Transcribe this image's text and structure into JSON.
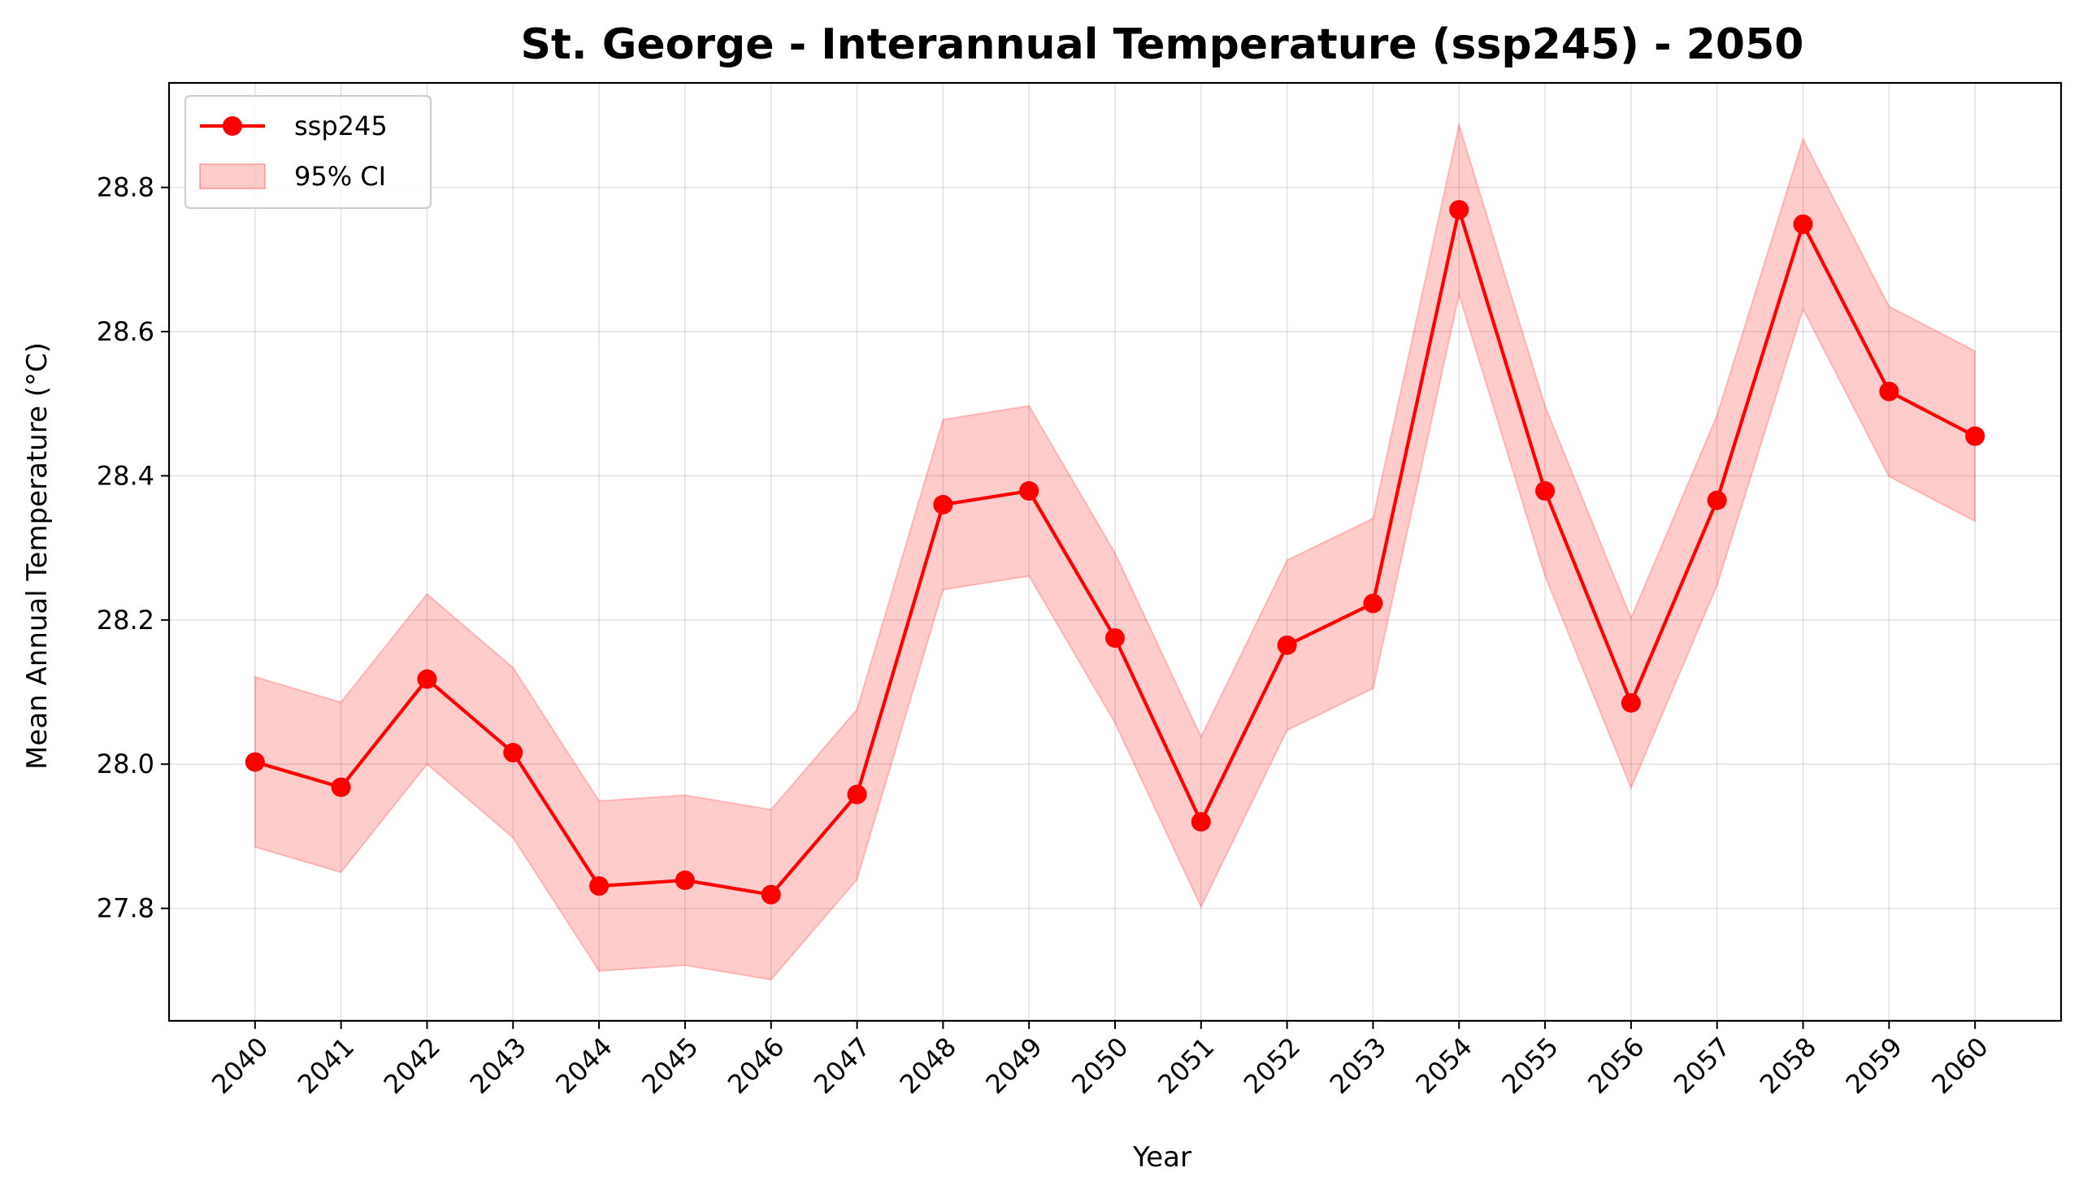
{
  "chart_data": {
    "type": "line",
    "title": "St. George - Interannual Temperature (ssp245) - 2050",
    "xlabel": "Year",
    "ylabel": "Mean Annual Temperature (°C)",
    "x": [
      2040,
      2041,
      2042,
      2043,
      2044,
      2045,
      2046,
      2047,
      2048,
      2049,
      2050,
      2051,
      2052,
      2053,
      2054,
      2055,
      2056,
      2057,
      2058,
      2059,
      2060
    ],
    "x_tick_labels": [
      "2040",
      "2041",
      "2042",
      "2043",
      "2044",
      "2045",
      "2046",
      "2047",
      "2048",
      "2049",
      "2050",
      "2051",
      "2052",
      "2053",
      "2054",
      "2055",
      "2056",
      "2057",
      "2058",
      "2059",
      "2060"
    ],
    "y_ticks": [
      27.8,
      28.0,
      28.2,
      28.4,
      28.6,
      28.8
    ],
    "y_tick_labels": [
      "27.8",
      "28.0",
      "28.2",
      "28.4",
      "28.6",
      "28.8"
    ],
    "xlim": [
      2039.0,
      2061.0
    ],
    "ylim": [
      27.644,
      28.945
    ],
    "grid": true,
    "legend_position": "upper-left",
    "series": [
      {
        "name": "ssp245",
        "color": "#ff0000",
        "marker": "circle",
        "values": [
          28.003,
          27.968,
          28.118,
          28.016,
          27.831,
          27.839,
          27.819,
          27.958,
          28.36,
          28.379,
          28.175,
          27.92,
          28.165,
          28.223,
          28.769,
          28.379,
          28.085,
          28.366,
          28.749,
          28.517,
          28.455
        ]
      }
    ],
    "band": {
      "name": "95% CI",
      "color": "#ff0000",
      "opacity": 0.2,
      "lower": [
        27.885,
        27.85,
        28.0,
        27.898,
        27.713,
        27.721,
        27.701,
        27.84,
        28.242,
        28.261,
        28.057,
        27.802,
        28.047,
        28.105,
        28.651,
        28.261,
        27.967,
        28.248,
        28.631,
        28.399,
        28.337
      ],
      "upper": [
        28.121,
        28.086,
        28.236,
        28.134,
        27.949,
        27.957,
        27.937,
        28.076,
        28.478,
        28.497,
        28.293,
        28.038,
        28.283,
        28.341,
        28.887,
        28.497,
        28.203,
        28.484,
        28.867,
        28.635,
        28.573
      ]
    },
    "legend": [
      {
        "label": "ssp245",
        "kind": "line-marker",
        "color": "#ff0000"
      },
      {
        "label": "95% CI",
        "kind": "patch",
        "color": "#ff0000"
      }
    ]
  }
}
